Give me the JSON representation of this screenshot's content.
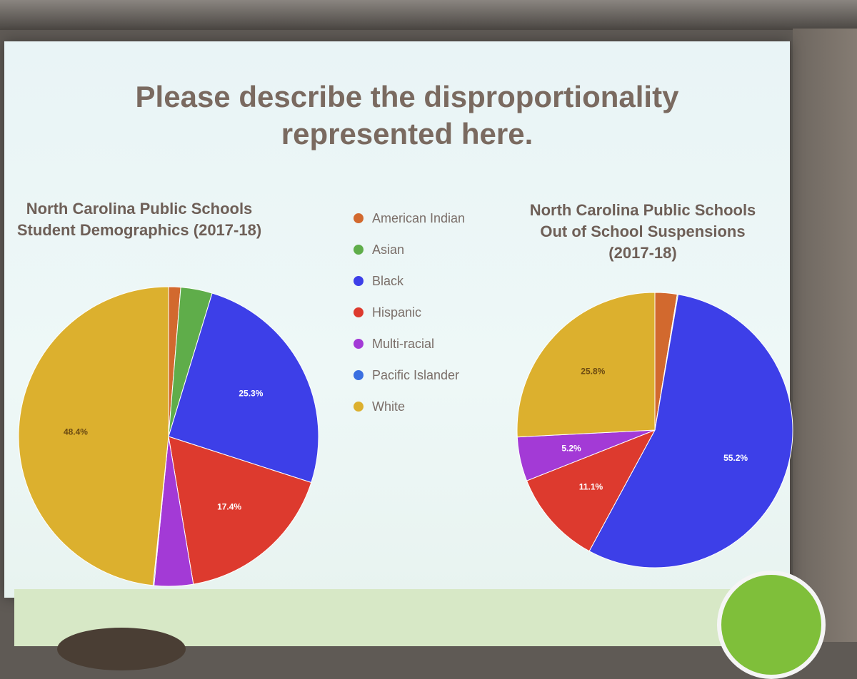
{
  "headline": "Please describe the disproportionality represented here.",
  "legend": [
    {
      "label": "American Indian",
      "color": "#d2692e"
    },
    {
      "label": "Asian",
      "color": "#5fad4a"
    },
    {
      "label": "Black",
      "color": "#3d3fe8"
    },
    {
      "label": "Hispanic",
      "color": "#dd3a2e"
    },
    {
      "label": "Multi-racial",
      "color": "#a33ad6"
    },
    {
      "label": "Pacific Islander",
      "color": "#3a6fe0"
    },
    {
      "label": "White",
      "color": "#dcb02e"
    }
  ],
  "chart_data": [
    {
      "type": "pie",
      "title": "North Carolina Public Schools Student Demographics (2017-18)",
      "categories": [
        "American Indian",
        "Asian",
        "Black",
        "Hispanic",
        "Multi-racial",
        "Pacific Islander",
        "White"
      ],
      "values": [
        1.3,
        3.4,
        25.3,
        17.4,
        4.2,
        0.1,
        48.4
      ],
      "data_labels": [
        "",
        "",
        "25.3%",
        "17.4%",
        "",
        "",
        "48.4%"
      ]
    },
    {
      "type": "pie",
      "title": "North Carolina Public Schools Out of School Suspensions (2017-18)",
      "categories": [
        "American Indian",
        "Asian",
        "Black",
        "Hispanic",
        "Multi-racial",
        "Pacific Islander",
        "White"
      ],
      "values": [
        2.6,
        0.1,
        55.2,
        11.1,
        5.2,
        0.0,
        25.8
      ],
      "data_labels": [
        "",
        "",
        "55.2%",
        "11.1%",
        "5.2%",
        "",
        "25.8%"
      ]
    }
  ]
}
